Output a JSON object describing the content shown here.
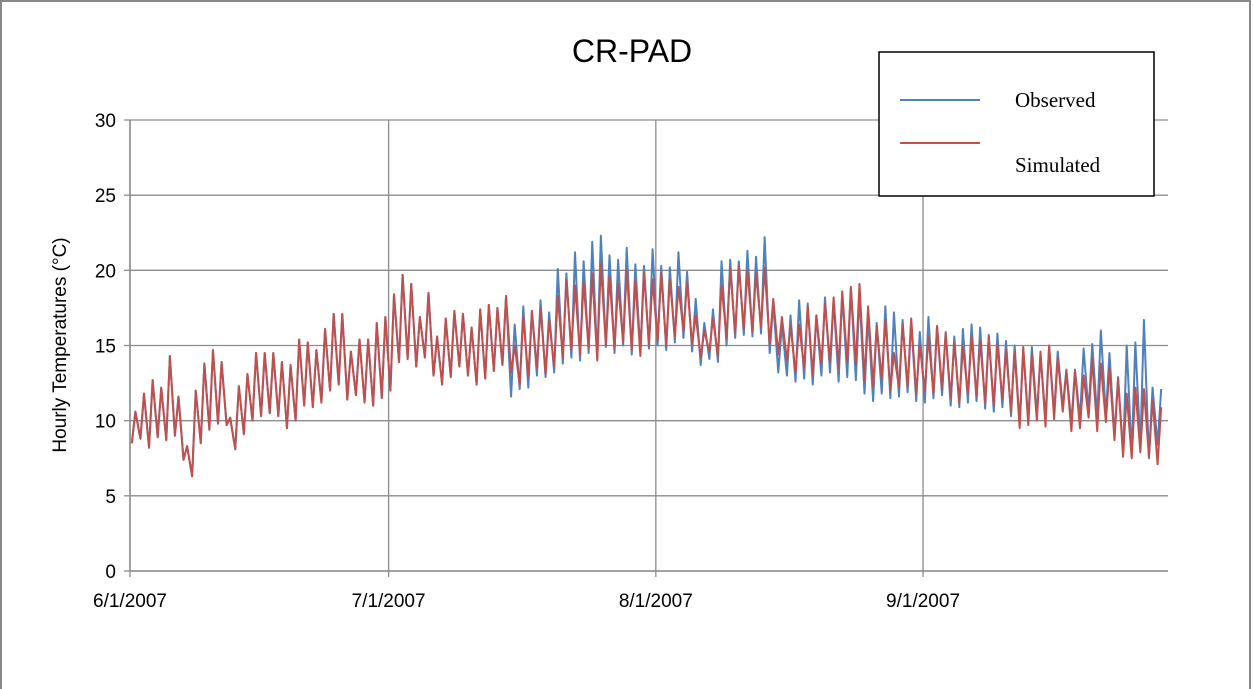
{
  "chart_data": {
    "type": "line",
    "title": "CR-PAD",
    "y_label": "Hourly Temperatures (°C)",
    "legend": "top-right",
    "grid": true,
    "xlim": [
      "6/1/2007 00:00",
      "9/29/2007 10:00"
    ],
    "xticks": [
      "6/1/2007",
      "7/1/2007",
      "8/1/2007",
      "9/1/2007"
    ],
    "ylim": [
      0,
      30
    ],
    "yticks": [
      0,
      5,
      10,
      15,
      20,
      25,
      30
    ],
    "x": [
      "6/1/2007 05:00",
      "6/1/2007 15:00",
      "6/2/2007 05:00",
      "6/2/2007 15:00",
      "6/3/2007 05:00",
      "6/3/2007 15:00",
      "6/4/2007 05:00",
      "6/4/2007 15:00",
      "6/5/2007 05:00",
      "6/5/2007 15:00",
      "6/6/2007 05:00",
      "6/6/2007 15:00",
      "6/7/2007 05:00",
      "6/7/2007 15:00",
      "6/8/2007 05:00",
      "6/8/2007 15:00",
      "6/9/2007 05:00",
      "6/9/2007 15:00",
      "6/10/2007 05:00",
      "6/10/2007 15:00",
      "6/11/2007 05:00",
      "6/11/2007 15:00",
      "6/12/2007 05:00",
      "6/12/2007 15:00",
      "6/13/2007 05:00",
      "6/13/2007 15:00",
      "6/14/2007 05:00",
      "6/14/2007 15:00",
      "6/15/2007 05:00",
      "6/15/2007 15:00",
      "6/16/2007 05:00",
      "6/16/2007 15:00",
      "6/17/2007 05:00",
      "6/17/2007 15:00",
      "6/18/2007 05:00",
      "6/18/2007 15:00",
      "6/19/2007 05:00",
      "6/19/2007 15:00",
      "6/20/2007 05:00",
      "6/20/2007 15:00",
      "6/21/2007 05:00",
      "6/21/2007 15:00",
      "6/22/2007 05:00",
      "6/22/2007 15:00",
      "6/23/2007 05:00",
      "6/23/2007 15:00",
      "6/24/2007 05:00",
      "6/24/2007 15:00",
      "6/25/2007 05:00",
      "6/25/2007 15:00",
      "6/26/2007 05:00",
      "6/26/2007 15:00",
      "6/27/2007 05:00",
      "6/27/2007 15:00",
      "6/28/2007 05:00",
      "6/28/2007 15:00",
      "6/29/2007 05:00",
      "6/29/2007 15:00",
      "6/30/2007 05:00",
      "6/30/2007 15:00",
      "7/1/2007 05:00",
      "7/1/2007 15:00",
      "7/2/2007 05:00",
      "7/2/2007 15:00",
      "7/3/2007 05:00",
      "7/3/2007 15:00",
      "7/4/2007 05:00",
      "7/4/2007 15:00",
      "7/5/2007 05:00",
      "7/5/2007 15:00",
      "7/6/2007 05:00",
      "7/6/2007 15:00",
      "7/7/2007 05:00",
      "7/7/2007 15:00",
      "7/8/2007 05:00",
      "7/8/2007 15:00",
      "7/9/2007 05:00",
      "7/9/2007 15:00",
      "7/10/2007 05:00",
      "7/10/2007 15:00",
      "7/11/2007 05:00",
      "7/11/2007 15:00",
      "7/12/2007 05:00",
      "7/12/2007 15:00",
      "7/13/2007 05:00",
      "7/13/2007 15:00",
      "7/14/2007 05:00",
      "7/14/2007 15:00",
      "7/15/2007 05:00",
      "7/15/2007 15:00",
      "7/16/2007 05:00",
      "7/16/2007 15:00",
      "7/17/2007 05:00",
      "7/17/2007 15:00",
      "7/18/2007 05:00",
      "7/18/2007 15:00",
      "7/19/2007 05:00",
      "7/19/2007 15:00",
      "7/20/2007 05:00",
      "7/20/2007 15:00",
      "7/21/2007 05:00",
      "7/21/2007 15:00",
      "7/22/2007 05:00",
      "7/22/2007 15:00",
      "7/23/2007 05:00",
      "7/23/2007 15:00",
      "7/24/2007 05:00",
      "7/24/2007 15:00",
      "7/25/2007 05:00",
      "7/25/2007 15:00",
      "7/26/2007 05:00",
      "7/26/2007 15:00",
      "7/27/2007 05:00",
      "7/27/2007 15:00",
      "7/28/2007 05:00",
      "7/28/2007 15:00",
      "7/29/2007 05:00",
      "7/29/2007 15:00",
      "7/30/2007 05:00",
      "7/30/2007 15:00",
      "7/31/2007 05:00",
      "7/31/2007 15:00",
      "8/1/2007 05:00",
      "8/1/2007 15:00",
      "8/2/2007 05:00",
      "8/2/2007 15:00",
      "8/3/2007 05:00",
      "8/3/2007 15:00",
      "8/4/2007 05:00",
      "8/4/2007 15:00",
      "8/5/2007 05:00",
      "8/5/2007 15:00",
      "8/6/2007 05:00",
      "8/6/2007 15:00",
      "8/7/2007 05:00",
      "8/7/2007 15:00",
      "8/8/2007 05:00",
      "8/8/2007 15:00",
      "8/9/2007 05:00",
      "8/9/2007 15:00",
      "8/10/2007 05:00",
      "8/10/2007 15:00",
      "8/11/2007 05:00",
      "8/11/2007 15:00",
      "8/12/2007 05:00",
      "8/12/2007 15:00",
      "8/13/2007 05:00",
      "8/13/2007 15:00",
      "8/14/2007 05:00",
      "8/14/2007 15:00",
      "8/15/2007 05:00",
      "8/15/2007 15:00",
      "8/16/2007 05:00",
      "8/16/2007 15:00",
      "8/17/2007 05:00",
      "8/17/2007 15:00",
      "8/18/2007 05:00",
      "8/18/2007 15:00",
      "8/19/2007 05:00",
      "8/19/2007 15:00",
      "8/20/2007 05:00",
      "8/20/2007 15:00",
      "8/21/2007 05:00",
      "8/21/2007 15:00",
      "8/22/2007 05:00",
      "8/22/2007 15:00",
      "8/23/2007 05:00",
      "8/23/2007 15:00",
      "8/24/2007 05:00",
      "8/24/2007 15:00",
      "8/25/2007 05:00",
      "8/25/2007 15:00",
      "8/26/2007 05:00",
      "8/26/2007 15:00",
      "8/27/2007 05:00",
      "8/27/2007 15:00",
      "8/28/2007 05:00",
      "8/28/2007 15:00",
      "8/29/2007 05:00",
      "8/29/2007 15:00",
      "8/30/2007 05:00",
      "8/30/2007 15:00",
      "8/31/2007 05:00",
      "8/31/2007 15:00",
      "9/1/2007 05:00",
      "9/1/2007 15:00",
      "9/2/2007 05:00",
      "9/2/2007 15:00",
      "9/3/2007 05:00",
      "9/3/2007 15:00",
      "9/4/2007 05:00",
      "9/4/2007 15:00",
      "9/5/2007 05:00",
      "9/5/2007 15:00",
      "9/6/2007 05:00",
      "9/6/2007 15:00",
      "9/7/2007 05:00",
      "9/7/2007 15:00",
      "9/8/2007 05:00",
      "9/8/2007 15:00",
      "9/9/2007 05:00",
      "9/9/2007 15:00",
      "9/10/2007 05:00",
      "9/10/2007 15:00",
      "9/11/2007 05:00",
      "9/11/2007 15:00",
      "9/12/2007 05:00",
      "9/12/2007 15:00",
      "9/13/2007 05:00",
      "9/13/2007 15:00",
      "9/14/2007 05:00",
      "9/14/2007 15:00",
      "9/15/2007 05:00",
      "9/15/2007 15:00",
      "9/16/2007 05:00",
      "9/16/2007 15:00",
      "9/17/2007 05:00",
      "9/17/2007 15:00",
      "9/18/2007 05:00",
      "9/18/2007 15:00",
      "9/19/2007 05:00",
      "9/19/2007 15:00",
      "9/20/2007 05:00",
      "9/20/2007 15:00",
      "9/21/2007 05:00",
      "9/21/2007 15:00",
      "9/22/2007 05:00",
      "9/22/2007 15:00",
      "9/23/2007 05:00",
      "9/23/2007 15:00",
      "9/24/2007 05:00",
      "9/24/2007 15:00",
      "9/25/2007 05:00",
      "9/25/2007 15:00",
      "9/26/2007 05:00",
      "9/26/2007 15:00",
      "9/27/2007 05:00",
      "9/27/2007 15:00",
      "9/28/2007 05:00",
      "9/28/2007 15:00"
    ],
    "series": [
      {
        "name": "Observed",
        "color": "#4f81bd",
        "values": [
          8.5,
          10.6,
          8.8,
          11.8,
          8.2,
          12.7,
          8.9,
          12.2,
          8.7,
          14.3,
          9.0,
          11.6,
          7.4,
          8.3,
          6.3,
          12.0,
          8.5,
          13.8,
          9.4,
          14.7,
          9.8,
          13.9,
          9.7,
          10.2,
          8.1,
          12.3,
          9.1,
          13.1,
          10.0,
          14.5,
          10.3,
          14.5,
          10.5,
          14.5,
          10.3,
          13.9,
          9.5,
          13.7,
          10.0,
          15.4,
          11.0,
          15.2,
          10.9,
          14.7,
          11.2,
          16.1,
          12.0,
          17.1,
          12.4,
          17.1,
          11.4,
          14.6,
          11.7,
          15.4,
          11.2,
          15.4,
          11.0,
          16.5,
          11.5,
          16.9,
          12.0,
          18.4,
          13.9,
          19.7,
          14.1,
          19.1,
          13.6,
          16.9,
          14.2,
          18.5,
          13.0,
          15.6,
          12.4,
          16.8,
          12.9,
          17.3,
          13.6,
          17.1,
          13.0,
          16.2,
          12.4,
          17.4,
          12.8,
          17.7,
          13.3,
          17.5,
          13.7,
          18.3,
          11.6,
          16.4,
          12.1,
          17.6,
          12.2,
          17.3,
          13.0,
          18.0,
          12.9,
          17.2,
          13.2,
          20.1,
          13.8,
          19.8,
          14.2,
          21.2,
          14.0,
          20.6,
          14.5,
          21.9,
          14.1,
          22.3,
          14.9,
          21.0,
          14.5,
          20.7,
          15.0,
          21.5,
          14.4,
          20.4,
          14.6,
          20.3,
          14.8,
          21.4,
          15.0,
          20.3,
          14.7,
          20.2,
          15.2,
          21.2,
          15.5,
          19.9,
          14.6,
          18.1,
          13.7,
          16.5,
          14.1,
          17.4,
          13.9,
          20.6,
          15.0,
          20.7,
          15.5,
          20.6,
          15.7,
          21.3,
          15.6,
          20.9,
          15.8,
          22.2,
          14.5,
          17.8,
          13.2,
          16.4,
          13.0,
          17.0,
          12.6,
          18.0,
          12.8,
          17.8,
          12.4,
          17.0,
          13.0,
          18.2,
          13.2,
          18.0,
          12.6,
          18.5,
          12.9,
          18.8,
          12.7,
          18.4,
          11.8,
          17.0,
          11.3,
          16.5,
          11.8,
          17.6,
          11.5,
          17.2,
          11.6,
          16.7,
          11.9,
          16.6,
          11.3,
          15.9,
          11.2,
          16.9,
          11.5,
          16.3,
          11.7,
          15.9,
          11.0,
          15.6,
          10.9,
          16.1,
          11.2,
          16.4,
          11.3,
          16.2,
          10.8,
          15.7,
          10.6,
          15.8,
          10.9,
          15.3,
          10.3,
          15.0,
          9.8,
          14.8,
          10.0,
          14.9,
          10.4,
          14.3,
          10.2,
          15.0,
          10.5,
          14.6,
          10.9,
          13.4,
          9.9,
          13.4,
          10.1,
          14.8,
          10.6,
          15.1,
          10.2,
          16.0,
          10.3,
          14.5,
          9.0,
          12.9,
          7.8,
          15.0,
          7.7,
          15.2,
          8.3,
          16.7,
          7.5,
          12.2,
          8.4,
          12.1
        ]
      },
      {
        "name": "Simulated",
        "color": "#c0504d",
        "values": [
          8.5,
          10.6,
          8.8,
          11.8,
          8.2,
          12.7,
          8.9,
          12.2,
          8.7,
          14.3,
          9.0,
          11.6,
          7.4,
          8.3,
          6.3,
          12.0,
          8.5,
          13.8,
          9.4,
          14.7,
          9.8,
          13.9,
          9.7,
          10.2,
          8.1,
          12.3,
          9.1,
          13.1,
          10.0,
          14.5,
          10.3,
          14.5,
          10.5,
          14.5,
          10.3,
          13.9,
          9.5,
          13.7,
          10.0,
          15.4,
          11.0,
          15.2,
          10.9,
          14.7,
          11.2,
          16.1,
          12.0,
          17.1,
          12.4,
          17.1,
          11.4,
          14.6,
          11.7,
          15.4,
          11.2,
          15.4,
          11.0,
          16.5,
          11.5,
          16.9,
          12.0,
          18.4,
          13.9,
          19.7,
          14.1,
          19.1,
          13.6,
          16.9,
          14.2,
          18.5,
          13.0,
          15.6,
          12.4,
          16.8,
          12.9,
          17.3,
          13.6,
          17.1,
          13.0,
          16.2,
          12.4,
          17.4,
          12.8,
          17.7,
          13.3,
          17.5,
          13.7,
          18.3,
          13.2,
          15.0,
          12.4,
          16.9,
          12.9,
          17.3,
          13.5,
          17.5,
          13.1,
          16.7,
          13.6,
          18.3,
          14.2,
          19.4,
          14.7,
          19.0,
          14.4,
          19.2,
          14.8,
          19.8,
          14.0,
          20.4,
          15.0,
          19.6,
          14.8,
          19.1,
          15.2,
          20.0,
          14.7,
          19.3,
          14.3,
          19.9,
          15.1,
          19.4,
          15.3,
          19.8,
          15.0,
          19.4,
          15.6,
          18.9,
          16.0,
          19.2,
          15.1,
          17.0,
          14.2,
          16.0,
          14.6,
          16.8,
          14.3,
          19.0,
          15.5,
          20.1,
          15.8,
          20.3,
          16.1,
          20.0,
          15.9,
          19.8,
          16.2,
          20.2,
          15.1,
          18.1,
          14.4,
          16.9,
          14.0,
          16.3,
          13.2,
          16.4,
          13.5,
          17.6,
          13.0,
          17.0,
          13.8,
          17.8,
          13.9,
          18.2,
          13.5,
          18.6,
          13.9,
          18.9,
          13.8,
          19.1,
          12.7,
          17.6,
          12.3,
          16.3,
          12.8,
          16.7,
          12.0,
          14.5,
          12.2,
          16.4,
          12.3,
          16.8,
          11.8,
          15.0,
          12.0,
          15.6,
          11.8,
          16.3,
          12.1,
          15.8,
          11.5,
          15.2,
          11.2,
          14.9,
          11.8,
          15.6,
          11.6,
          15.3,
          11.2,
          15.6,
          11.0,
          15.1,
          11.4,
          14.7,
          10.6,
          14.6,
          9.5,
          14.9,
          9.7,
          14.4,
          10.0,
          14.6,
          9.6,
          15.0,
          10.1,
          14.2,
          10.6,
          13.3,
          9.3,
          13.3,
          9.5,
          13.0,
          10.2,
          14.1,
          9.3,
          13.8,
          9.9,
          13.5,
          8.7,
          12.8,
          7.6,
          11.8,
          7.5,
          12.2,
          7.9,
          12.1,
          7.6,
          11.4,
          7.1,
          10.9
        ]
      }
    ]
  }
}
